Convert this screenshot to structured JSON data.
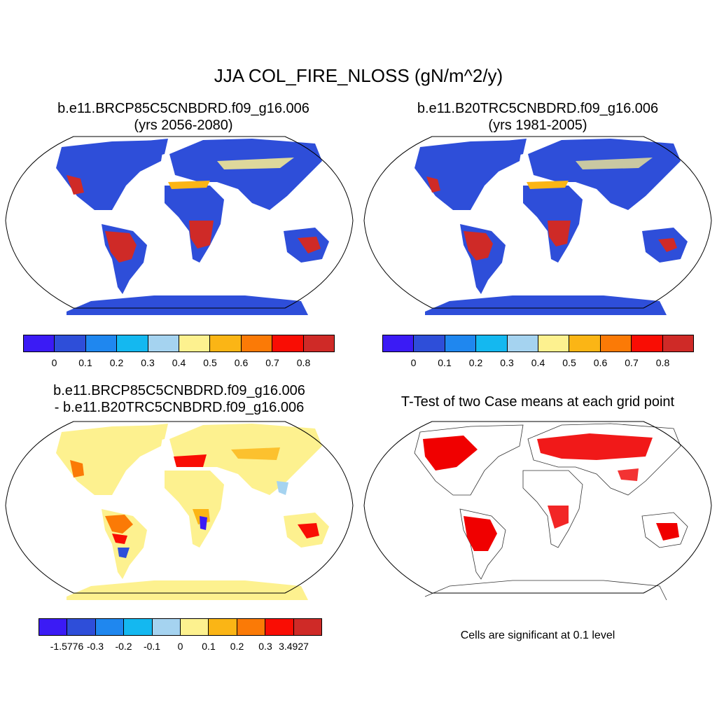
{
  "main_title": "JJA COL_FIRE_NLOSS (gN/m^2/y)",
  "panels": [
    {
      "title1": "b.e11.BRCP85C5CNBDRD.f09_g16.006",
      "title2": "(yrs 2056-2080)"
    },
    {
      "title1": "b.e11.B20TRC5CNBDRD.f09_g16.006",
      "title2": "(yrs 1981-2005)"
    },
    {
      "title1": "b.e11.BRCP85C5CNBDRD.f09_g16.006",
      "title2": "- b.e11.B20TRC5CNBDRD.f09_g16.006"
    },
    {
      "title1": "T-Test of two Case means at each grid point"
    }
  ],
  "colorbar_main": {
    "colors": [
      "#3b1bf5",
      "#2e4ed9",
      "#1f87ef",
      "#14b8f0",
      "#a5d3f0",
      "#fdf18f",
      "#fbb515",
      "#fb7a06",
      "#f90d04",
      "#cf2a27"
    ],
    "labels": [
      "0",
      "0.1",
      "0.2",
      "0.3",
      "0.4",
      "0.5",
      "0.6",
      "0.7",
      "0.8"
    ]
  },
  "colorbar_diff": {
    "colors": [
      "#3b1bf5",
      "#2e4ed9",
      "#1f87ef",
      "#14b8f0",
      "#a5d3f0",
      "#fdf18f",
      "#fbb515",
      "#fb7a06",
      "#f90d04",
      "#cf2a27"
    ],
    "labels": [
      "-1.5776",
      "-0.3",
      "-0.2",
      "-0.1",
      "0",
      "0.1",
      "0.2",
      "0.3",
      "3.4927"
    ]
  },
  "significance_note": "Cells are significant at 0.1 level",
  "colors": {
    "land_base": "#2e4ed9",
    "tropical_fire": "#cf2a27",
    "diff_base": "#fdf18f",
    "sig": "#f00000"
  }
}
